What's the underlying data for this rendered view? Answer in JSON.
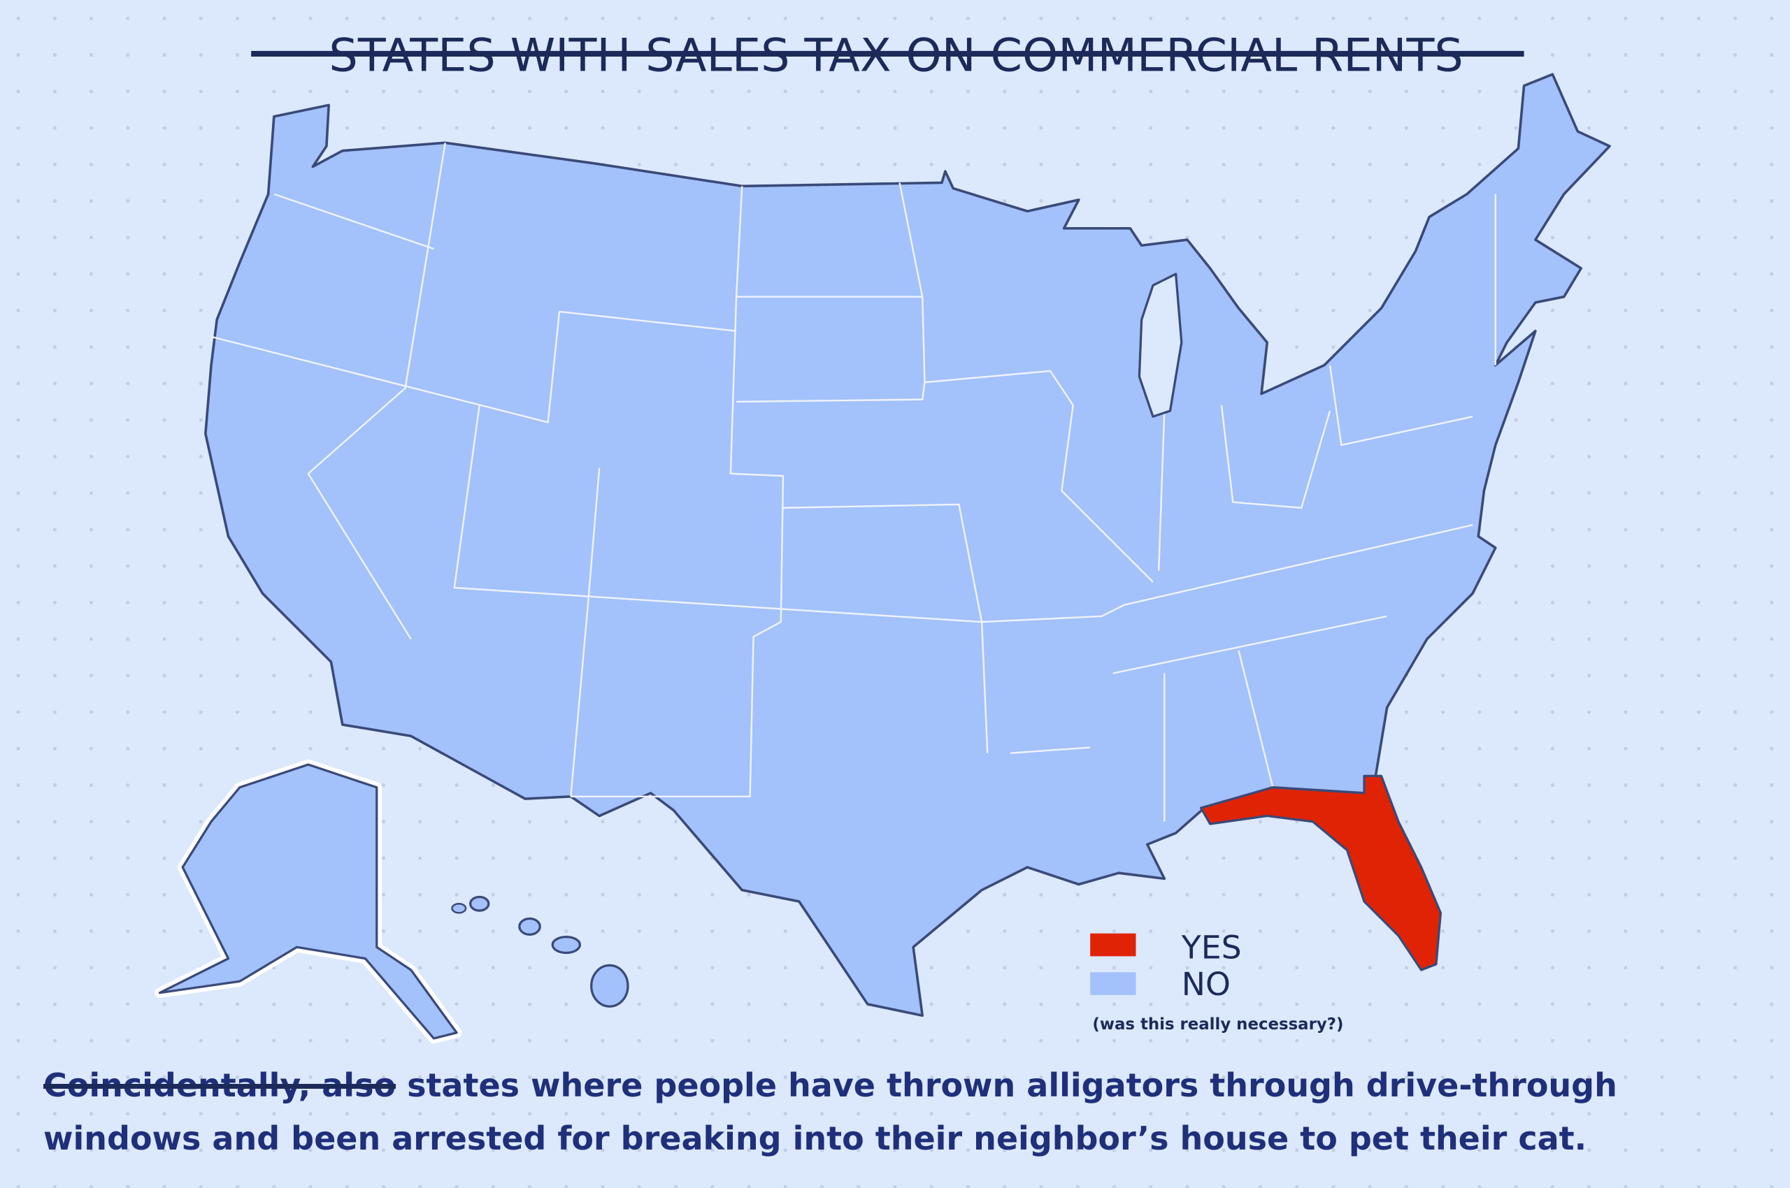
{
  "title": "STATES WITH SALES TAX ON COMMERCIAL RENTS",
  "legend": [
    {
      "label": "YES",
      "color": "#e02304"
    },
    {
      "label": "NO",
      "color": "#a3c1fa"
    }
  ],
  "legend_note": "(was this really necessary?)",
  "caption": {
    "struck": "Coincidentally, also",
    "text": "states where people have thrown alligators through drive-through windows and been arrested for breaking into their neighbor’s house to pet their cat."
  }
}
